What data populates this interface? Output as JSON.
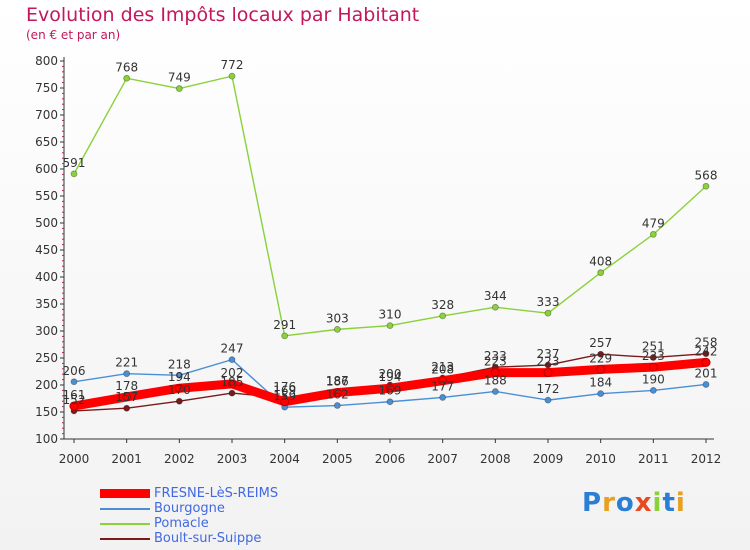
{
  "title": "Evolution des Impôts locaux par Habitant",
  "subtitle": "(en € et par an)",
  "logo": "Proxiti",
  "colors": {
    "title": "#c2185b",
    "legend_text": "#4169e1",
    "axis": "#333333"
  },
  "chart_data": {
    "type": "line",
    "x": [
      "2000",
      "2001",
      "2002",
      "2003",
      "2004",
      "2005",
      "2006",
      "2007",
      "2008",
      "2009",
      "2010",
      "2011",
      "2012"
    ],
    "ylim": [
      100,
      800
    ],
    "yticks": [
      100,
      150,
      200,
      250,
      300,
      350,
      400,
      450,
      500,
      550,
      600,
      650,
      700,
      750,
      800
    ],
    "grid": false,
    "legend_position": "bottom-left",
    "series": [
      {
        "name": "FRESNE-LèS-REIMS",
        "color": "#ff0000",
        "values": [
          161,
          178,
          194,
          202,
          169,
          186,
          194,
          208,
          223,
          223,
          229,
          233,
          242
        ]
      },
      {
        "name": "Bourgogne",
        "color": "#4a8fd4",
        "values": [
          206,
          221,
          218,
          247,
          159,
          162,
          169,
          177,
          188,
          172,
          184,
          190,
          201
        ]
      },
      {
        "name": "Pomacle",
        "color": "#8ad13a",
        "values": [
          591,
          768,
          749,
          772,
          291,
          303,
          310,
          328,
          344,
          333,
          408,
          479,
          568
        ]
      },
      {
        "name": "Boult-sur-Suippe",
        "color": "#7a1a1a",
        "values": [
          152,
          157,
          170,
          185,
          176,
          187,
          200,
          213,
          233,
          237,
          257,
          251,
          258
        ]
      }
    ]
  }
}
